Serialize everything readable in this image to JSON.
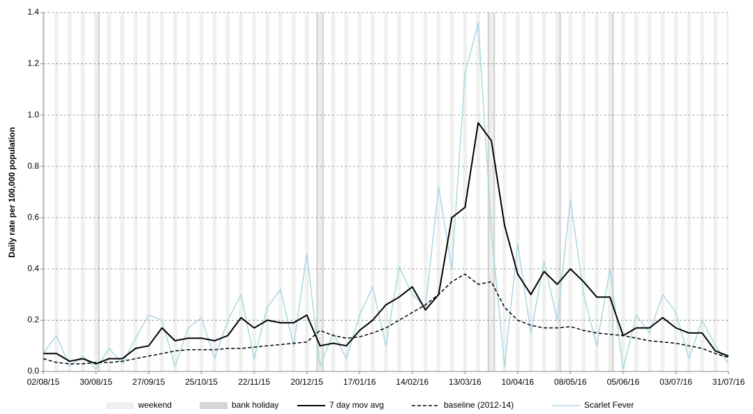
{
  "chart_data": {
    "type": "line",
    "y_label": "Daily rate per 100,000 population",
    "ylim": [
      0,
      1.4
    ],
    "yticks": [
      {
        "value": 0,
        "label": "0.0"
      },
      0.2,
      0.4,
      0.6,
      0.8,
      {
        "value": 1,
        "label": "1.0"
      },
      1.2,
      1.4
    ],
    "xlim": [
      "02/08/15",
      "31/07/16"
    ],
    "xticks": [
      "02/08/15",
      "30/08/15",
      "27/09/15",
      "25/10/15",
      "22/11/15",
      "20/12/15",
      "17/01/16",
      "14/02/16",
      "13/03/16",
      "10/04/16",
      "08/05/16",
      "05/06/16",
      "03/07/16",
      "31/07/16"
    ],
    "grid": true,
    "bands": [
      {
        "name": "weekend",
        "color": "#efefef",
        "days": [
          0,
          6
        ]
      },
      {
        "name": "bank holiday",
        "color": "#d6d6d6",
        "dates": [
          "31/08/15",
          "25/12/15",
          "28/12/15",
          "25/03/16",
          "28/03/16",
          "02/05/16",
          "30/05/16"
        ]
      }
    ],
    "x": [
      "02/08/15",
      "09/08/15",
      "16/08/15",
      "23/08/15",
      "30/08/15",
      "06/09/15",
      "13/09/15",
      "20/09/15",
      "27/09/15",
      "04/10/15",
      "11/10/15",
      "18/10/15",
      "25/10/15",
      "01/11/15",
      "08/11/15",
      "15/11/15",
      "22/11/15",
      "29/11/15",
      "06/12/15",
      "13/12/15",
      "20/12/15",
      "27/12/15",
      "03/01/16",
      "10/01/16",
      "17/01/16",
      "24/01/16",
      "31/01/16",
      "07/02/16",
      "14/02/16",
      "21/02/16",
      "28/02/16",
      "06/03/16",
      "13/03/16",
      "20/03/16",
      "27/03/16",
      "03/04/16",
      "10/04/16",
      "17/04/16",
      "24/04/16",
      "01/05/16",
      "08/05/16",
      "15/05/16",
      "22/05/16",
      "29/05/16",
      "05/06/16",
      "12/06/16",
      "19/06/16",
      "26/06/16",
      "03/07/16",
      "10/07/16",
      "17/07/16",
      "24/07/16",
      "31/07/16"
    ],
    "series": [
      {
        "name": "7 day mov avg",
        "color": "#000000",
        "width": 2,
        "dashed": false,
        "values": [
          0.07,
          0.07,
          0.04,
          0.05,
          0.03,
          0.05,
          0.05,
          0.09,
          0.1,
          0.17,
          0.12,
          0.13,
          0.13,
          0.12,
          0.14,
          0.21,
          0.17,
          0.2,
          0.19,
          0.19,
          0.22,
          0.1,
          0.11,
          0.1,
          0.16,
          0.2,
          0.26,
          0.29,
          0.33,
          0.24,
          0.3,
          0.6,
          0.64,
          0.97,
          0.9,
          0.57,
          0.38,
          0.3,
          0.39,
          0.34,
          0.4,
          0.35,
          0.29,
          0.29,
          0.14,
          0.17,
          0.17,
          0.21,
          0.17,
          0.15,
          0.15,
          0.08,
          0.06
        ]
      },
      {
        "name": "baseline (2012-14)",
        "color": "#000000",
        "width": 1.5,
        "dashed": true,
        "values": [
          0.05,
          0.035,
          0.03,
          0.03,
          0.035,
          0.035,
          0.04,
          0.05,
          0.06,
          0.07,
          0.08,
          0.085,
          0.085,
          0.085,
          0.09,
          0.09,
          0.095,
          0.1,
          0.105,
          0.11,
          0.115,
          0.16,
          0.14,
          0.13,
          0.135,
          0.15,
          0.17,
          0.2,
          0.23,
          0.26,
          0.3,
          0.35,
          0.38,
          0.34,
          0.35,
          0.25,
          0.2,
          0.18,
          0.17,
          0.17,
          0.175,
          0.16,
          0.15,
          0.145,
          0.14,
          0.13,
          0.12,
          0.115,
          0.11,
          0.1,
          0.09,
          0.07,
          0.055
        ]
      },
      {
        "name": "Scarlet Fever",
        "color": "#a9d8e2",
        "width": 1.5,
        "dashed": false,
        "values": [
          0.07,
          0.14,
          0.02,
          0.06,
          0.01,
          0.09,
          0.03,
          0.13,
          0.22,
          0.2,
          0.02,
          0.17,
          0.21,
          0.05,
          0.2,
          0.3,
          0.05,
          0.25,
          0.32,
          0.1,
          0.46,
          0.02,
          0.15,
          0.05,
          0.22,
          0.33,
          0.1,
          0.41,
          0.3,
          0.25,
          0.72,
          0.4,
          1.16,
          1.36,
          0.55,
          0.02,
          0.5,
          0.15,
          0.43,
          0.2,
          0.67,
          0.3,
          0.1,
          0.4,
          0.01,
          0.22,
          0.15,
          0.3,
          0.23,
          0.05,
          0.2,
          0.1,
          0.03
        ]
      }
    ]
  }
}
